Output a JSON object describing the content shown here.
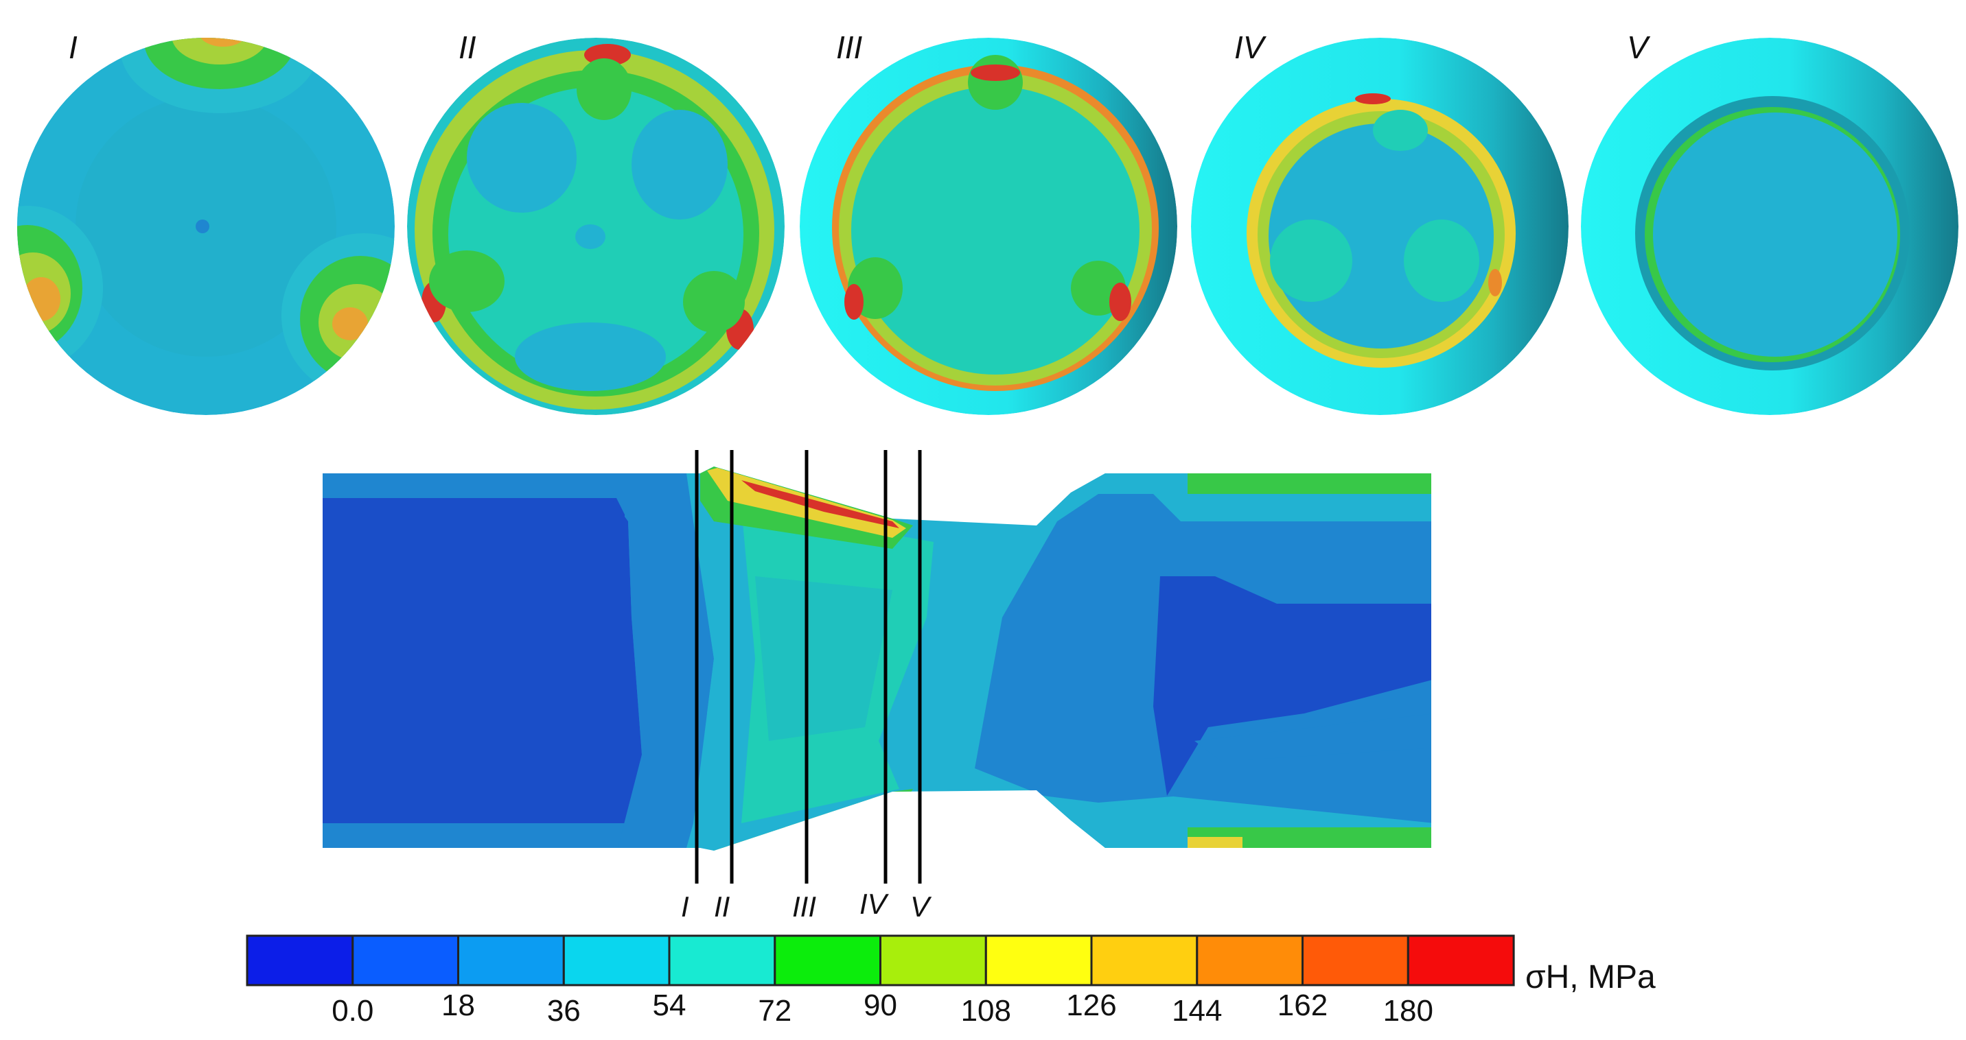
{
  "sections": [
    {
      "id": "s1",
      "label": "I"
    },
    {
      "id": "s2",
      "label": "II"
    },
    {
      "id": "s3",
      "label": "III"
    },
    {
      "id": "s4",
      "label": "IV"
    },
    {
      "id": "s5",
      "label": "V"
    }
  ],
  "legend": {
    "unit": "σH, MPa",
    "colors": [
      "#0c1ee8",
      "#0a5dff",
      "#0c9cf2",
      "#0ad6ee",
      "#18ead2",
      "#0ced0c",
      "#a8ee0c",
      "#ffff10",
      "#ffcf10",
      "#ff8c08",
      "#ff5a08",
      "#f50c0c"
    ],
    "ticks": [
      "0.0",
      "18",
      "36",
      "54",
      "72",
      "90",
      "108",
      "126",
      "144",
      "162",
      "180"
    ]
  },
  "palette": {
    "darkblue": "#1a4ec8",
    "blue": "#1f86d0",
    "lightblue": "#22b2d2",
    "cyan": "#20c8d8",
    "teal": "#20ceb6",
    "green": "#38c848",
    "yellowgreen": "#a6d23a",
    "yellow": "#e8d236",
    "orange": "#ea8a2c",
    "red": "#d8322a",
    "brightcyan": "#22f2f2",
    "shade": "#178898"
  }
}
